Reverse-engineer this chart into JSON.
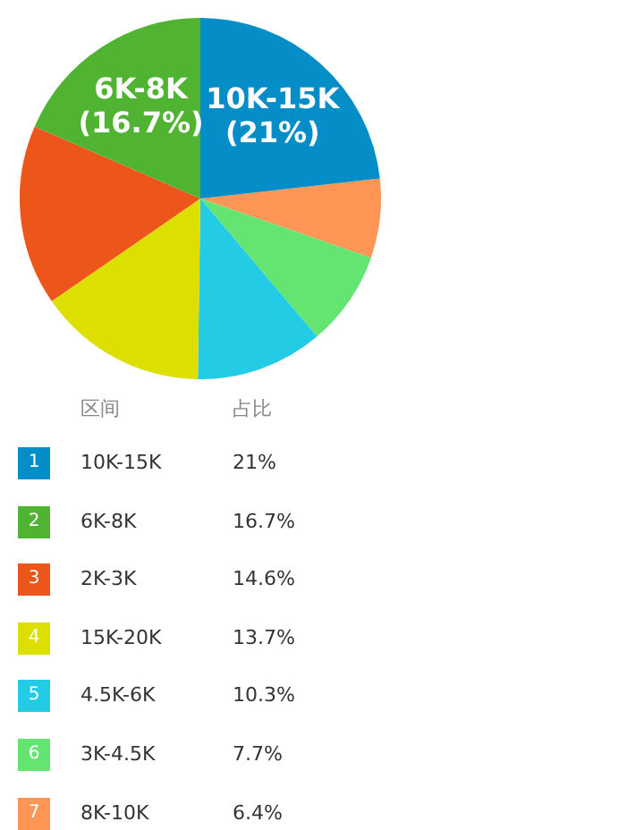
{
  "chart_data": {
    "type": "pie",
    "categories": [
      "10K-15K",
      "6K-8K",
      "2K-3K",
      "15K-20K",
      "4.5K-6K",
      "3K-4.5K",
      "8K-10K"
    ],
    "values": [
      21,
      16.7,
      14.6,
      13.7,
      10.3,
      7.7,
      6.4
    ],
    "value_labels": [
      "21%",
      "16.7%",
      "14.6%",
      "13.7%",
      "10.3%",
      "7.7%",
      "6.4%"
    ],
    "colors": [
      "#058dc7",
      "#50b432",
      "#ed561b",
      "#dddf00",
      "#24cbe5",
      "#64e572",
      "#ff9655"
    ],
    "legend": "bottom",
    "annotations": [
      "区间",
      "占比",
      "1",
      "2",
      "3",
      "4",
      "5",
      "6",
      "7",
      {
        "text": "10K-15K",
        "x": "10K-15K"
      },
      {
        "text": "(21%)",
        "x": "10K-15K"
      },
      {
        "text": "6K-8K",
        "x": "6K-8K"
      },
      {
        "text": "(16.7%)",
        "x": "6K-8K"
      }
    ]
  }
}
